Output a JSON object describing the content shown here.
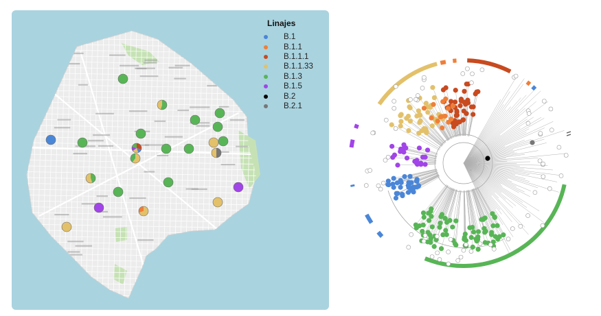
{
  "legend": {
    "title": "Linajes",
    "items": [
      {
        "label": "B.1",
        "color": "#4a86d8"
      },
      {
        "label": "B.1.1",
        "color": "#ef7f38"
      },
      {
        "label": "B.1.1.1",
        "color": "#c84a1f"
      },
      {
        "label": "B.1.1.33",
        "color": "#e3c16a"
      },
      {
        "label": "B.1.3",
        "color": "#58b556"
      },
      {
        "label": "B.1.5",
        "color": "#a144e8"
      },
      {
        "label": "B.2",
        "color": "#000000"
      },
      {
        "label": "B.2.1",
        "color": "#777777"
      }
    ]
  },
  "colors": {
    "water": "#a9d3df",
    "land": "#ececec",
    "park": "#c6e2b5"
  }
}
